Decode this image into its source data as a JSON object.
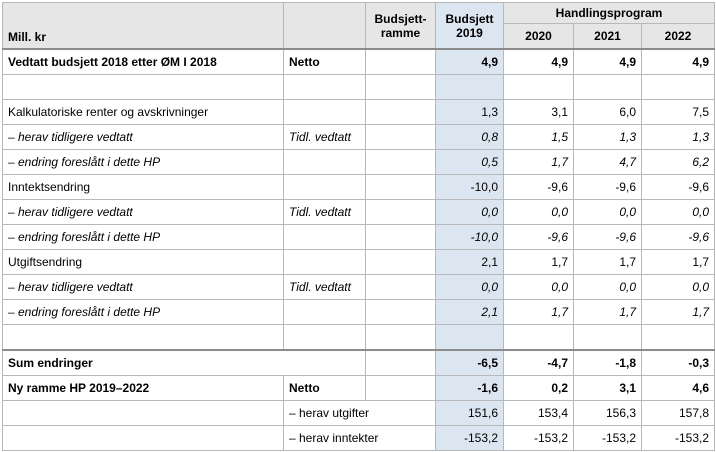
{
  "header": {
    "unit": "Mill. kr",
    "budsjettramme": "Budsjett-\nramme",
    "budsjettramme_l1": "Budsjett-",
    "budsjettramme_l2": "ramme",
    "budsjett_l1": "Budsjett",
    "budsjett_l2": "2019",
    "handlingsprogram": "Handlingsprogram",
    "years": [
      "2020",
      "2021",
      "2022"
    ]
  },
  "rows": {
    "vedtatt": {
      "label": "Vedtatt budsjett 2018 etter ØM I 2018",
      "tag": "Netto",
      "b2019": "4,9",
      "y2020": "4,9",
      "y2021": "4,9",
      "y2022": "4,9"
    },
    "kalk": {
      "label": "Kalkulatoriske renter og avskrivninger",
      "b2019": "1,3",
      "y2020": "3,1",
      "y2021": "6,0",
      "y2022": "7,5"
    },
    "kalk_tidl": {
      "label": "– herav tidligere vedtatt",
      "tag": "Tidl. vedtatt",
      "b2019": "0,8",
      "y2020": "1,5",
      "y2021": "1,3",
      "y2022": "1,3"
    },
    "kalk_endr": {
      "label": "– endring foreslått i dette HP",
      "b2019": "0,5",
      "y2020": "1,7",
      "y2021": "4,7",
      "y2022": "6,2"
    },
    "inntekt": {
      "label": "Inntektsendring",
      "b2019": "-10,0",
      "y2020": "-9,6",
      "y2021": "-9,6",
      "y2022": "-9,6"
    },
    "inntekt_tidl": {
      "label": "– herav tidligere vedtatt",
      "tag": "Tidl. vedtatt",
      "b2019": "0,0",
      "y2020": "0,0",
      "y2021": "0,0",
      "y2022": "0,0"
    },
    "inntekt_endr": {
      "label": "– endring foreslått i dette HP",
      "b2019": "-10,0",
      "y2020": "-9,6",
      "y2021": "-9,6",
      "y2022": "-9,6"
    },
    "utgift": {
      "label": "Utgiftsendring",
      "b2019": "2,1",
      "y2020": "1,7",
      "y2021": "1,7",
      "y2022": "1,7"
    },
    "utgift_tidl": {
      "label": "– herav tidligere vedtatt",
      "tag": "Tidl. vedtatt",
      "b2019": "0,0",
      "y2020": "0,0",
      "y2021": "0,0",
      "y2022": "0,0"
    },
    "utgift_endr": {
      "label": "– endring foreslått i dette HP",
      "b2019": "2,1",
      "y2020": "1,7",
      "y2021": "1,7",
      "y2022": "1,7"
    },
    "sum": {
      "label": "Sum endringer",
      "b2019": "-6,5",
      "y2020": "-4,7",
      "y2021": "-1,8",
      "y2022": "-0,3"
    },
    "ny": {
      "label": "Ny ramme HP 2019–2022",
      "tag": "Netto",
      "b2019": "-1,6",
      "y2020": "0,2",
      "y2021": "3,1",
      "y2022": "4,6"
    },
    "ny_utg": {
      "label": "– herav utgifter",
      "b2019": "151,6",
      "y2020": "153,4",
      "y2021": "156,3",
      "y2022": "157,8"
    },
    "ny_innt": {
      "label": "– herav inntekter",
      "b2019": "-153,2",
      "y2020": "-153,2",
      "y2021": "-153,2",
      "y2022": "-153,2"
    }
  }
}
